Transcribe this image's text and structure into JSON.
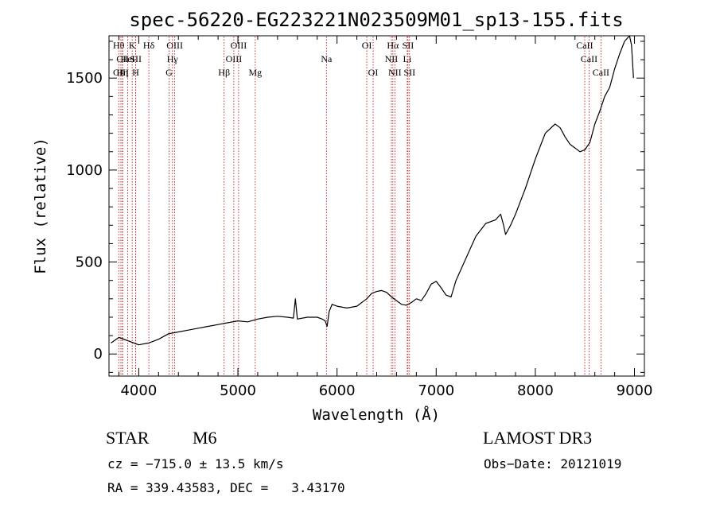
{
  "chart_data": {
    "type": "line",
    "title": "spec-56220-EG223221N023509M01_sp13-155.fits",
    "xlabel": "Wavelength (Å)",
    "ylabel": "Flux (relative)",
    "xlim": [
      3700,
      9100
    ],
    "ylim": [
      -120,
      1730
    ],
    "xticks": [
      4000,
      5000,
      6000,
      7000,
      8000,
      9000
    ],
    "yticks": [
      0,
      500,
      1000,
      1500
    ],
    "xtick_labels": [
      "4000",
      "5000",
      "6000",
      "7000",
      "8000",
      "9000"
    ],
    "ytick_labels": [
      "0",
      "500",
      "1000",
      "1500"
    ],
    "series": [
      {
        "name": "flux",
        "x": [
          3720,
          3800,
          3900,
          4000,
          4100,
          4200,
          4300,
          4400,
          4500,
          4600,
          4700,
          4800,
          4900,
          5000,
          5100,
          5200,
          5300,
          5400,
          5500,
          5560,
          5580,
          5600,
          5700,
          5800,
          5850,
          5880,
          5900,
          5920,
          5950,
          6000,
          6100,
          6200,
          6300,
          6350,
          6400,
          6450,
          6500,
          6550,
          6600,
          6650,
          6700,
          6750,
          6800,
          6850,
          6900,
          6950,
          7000,
          7050,
          7100,
          7150,
          7200,
          7300,
          7400,
          7500,
          7600,
          7650,
          7680,
          7700,
          7750,
          7800,
          7900,
          8000,
          8100,
          8200,
          8250,
          8300,
          8350,
          8400,
          8450,
          8500,
          8550,
          8600,
          8650,
          8700,
          8750,
          8800,
          8850,
          8900,
          8950,
          8970,
          8990
        ],
        "y": [
          60,
          90,
          70,
          50,
          60,
          80,
          110,
          120,
          130,
          140,
          150,
          160,
          170,
          180,
          175,
          190,
          200,
          205,
          200,
          195,
          300,
          190,
          200,
          200,
          190,
          180,
          150,
          230,
          270,
          260,
          250,
          260,
          300,
          330,
          340,
          345,
          335,
          310,
          290,
          270,
          265,
          280,
          300,
          290,
          330,
          380,
          395,
          360,
          320,
          310,
          400,
          520,
          640,
          710,
          730,
          760,
          700,
          650,
          700,
          760,
          900,
          1060,
          1200,
          1250,
          1230,
          1180,
          1140,
          1120,
          1100,
          1110,
          1150,
          1250,
          1320,
          1400,
          1450,
          1550,
          1630,
          1700,
          1730,
          1680,
          1500
        ]
      }
    ],
    "line_markers": [
      {
        "name": "Hθ",
        "x": 3798,
        "row": 0
      },
      {
        "name": "CII",
        "x": 3838,
        "row": 1
      },
      {
        "name": "CIII",
        "x": 3820,
        "row": 2
      },
      {
        "name": "Hη",
        "x": 3835,
        "row": 2
      },
      {
        "name": "K",
        "x": 3934,
        "row": 0
      },
      {
        "name": "HeI",
        "x": 3889,
        "row": 1
      },
      {
        "name": "SII",
        "x": 3970,
        "row": 1
      },
      {
        "name": "H",
        "x": 3969,
        "row": 2
      },
      {
        "name": "Hδ",
        "x": 4102,
        "row": 0
      },
      {
        "name": "OIII",
        "x": 4363,
        "row": 0
      },
      {
        "name": "Hγ",
        "x": 4340,
        "row": 1
      },
      {
        "name": "G",
        "x": 4305,
        "row": 2
      },
      {
        "name": "OIII",
        "x": 5007,
        "row": 0
      },
      {
        "name": "OIII",
        "x": 4959,
        "row": 1
      },
      {
        "name": "Hβ",
        "x": 4861,
        "row": 2
      },
      {
        "name": "Mg",
        "x": 5175,
        "row": 2
      },
      {
        "name": "Na",
        "x": 5893,
        "row": 1
      },
      {
        "name": "OI",
        "x": 6300,
        "row": 0
      },
      {
        "name": "OI",
        "x": 6364,
        "row": 2
      },
      {
        "name": "Hα",
        "x": 6563,
        "row": 0
      },
      {
        "name": "SII",
        "x": 6716,
        "row": 0
      },
      {
        "name": "NII",
        "x": 6548,
        "row": 1
      },
      {
        "name": "Li",
        "x": 6708,
        "row": 1
      },
      {
        "name": "NII",
        "x": 6583,
        "row": 2
      },
      {
        "name": "SII",
        "x": 6731,
        "row": 2
      },
      {
        "name": "CaII",
        "x": 8498,
        "row": 0
      },
      {
        "name": "CaII",
        "x": 8542,
        "row": 1
      },
      {
        "name": "CaII",
        "x": 8662,
        "row": 2
      }
    ]
  },
  "info": {
    "object_class": "STAR",
    "subclass": "M6",
    "survey": "LAMOST DR3",
    "redshift": "cz = −715.0 ± 13.5 km/s",
    "obs_date": "Obs−Date: 20121019",
    "coords": "RA = 339.43583, DEC =   3.43170"
  },
  "colors": {
    "line": "#000000",
    "marker": "#c00000",
    "axis": "#000000"
  }
}
